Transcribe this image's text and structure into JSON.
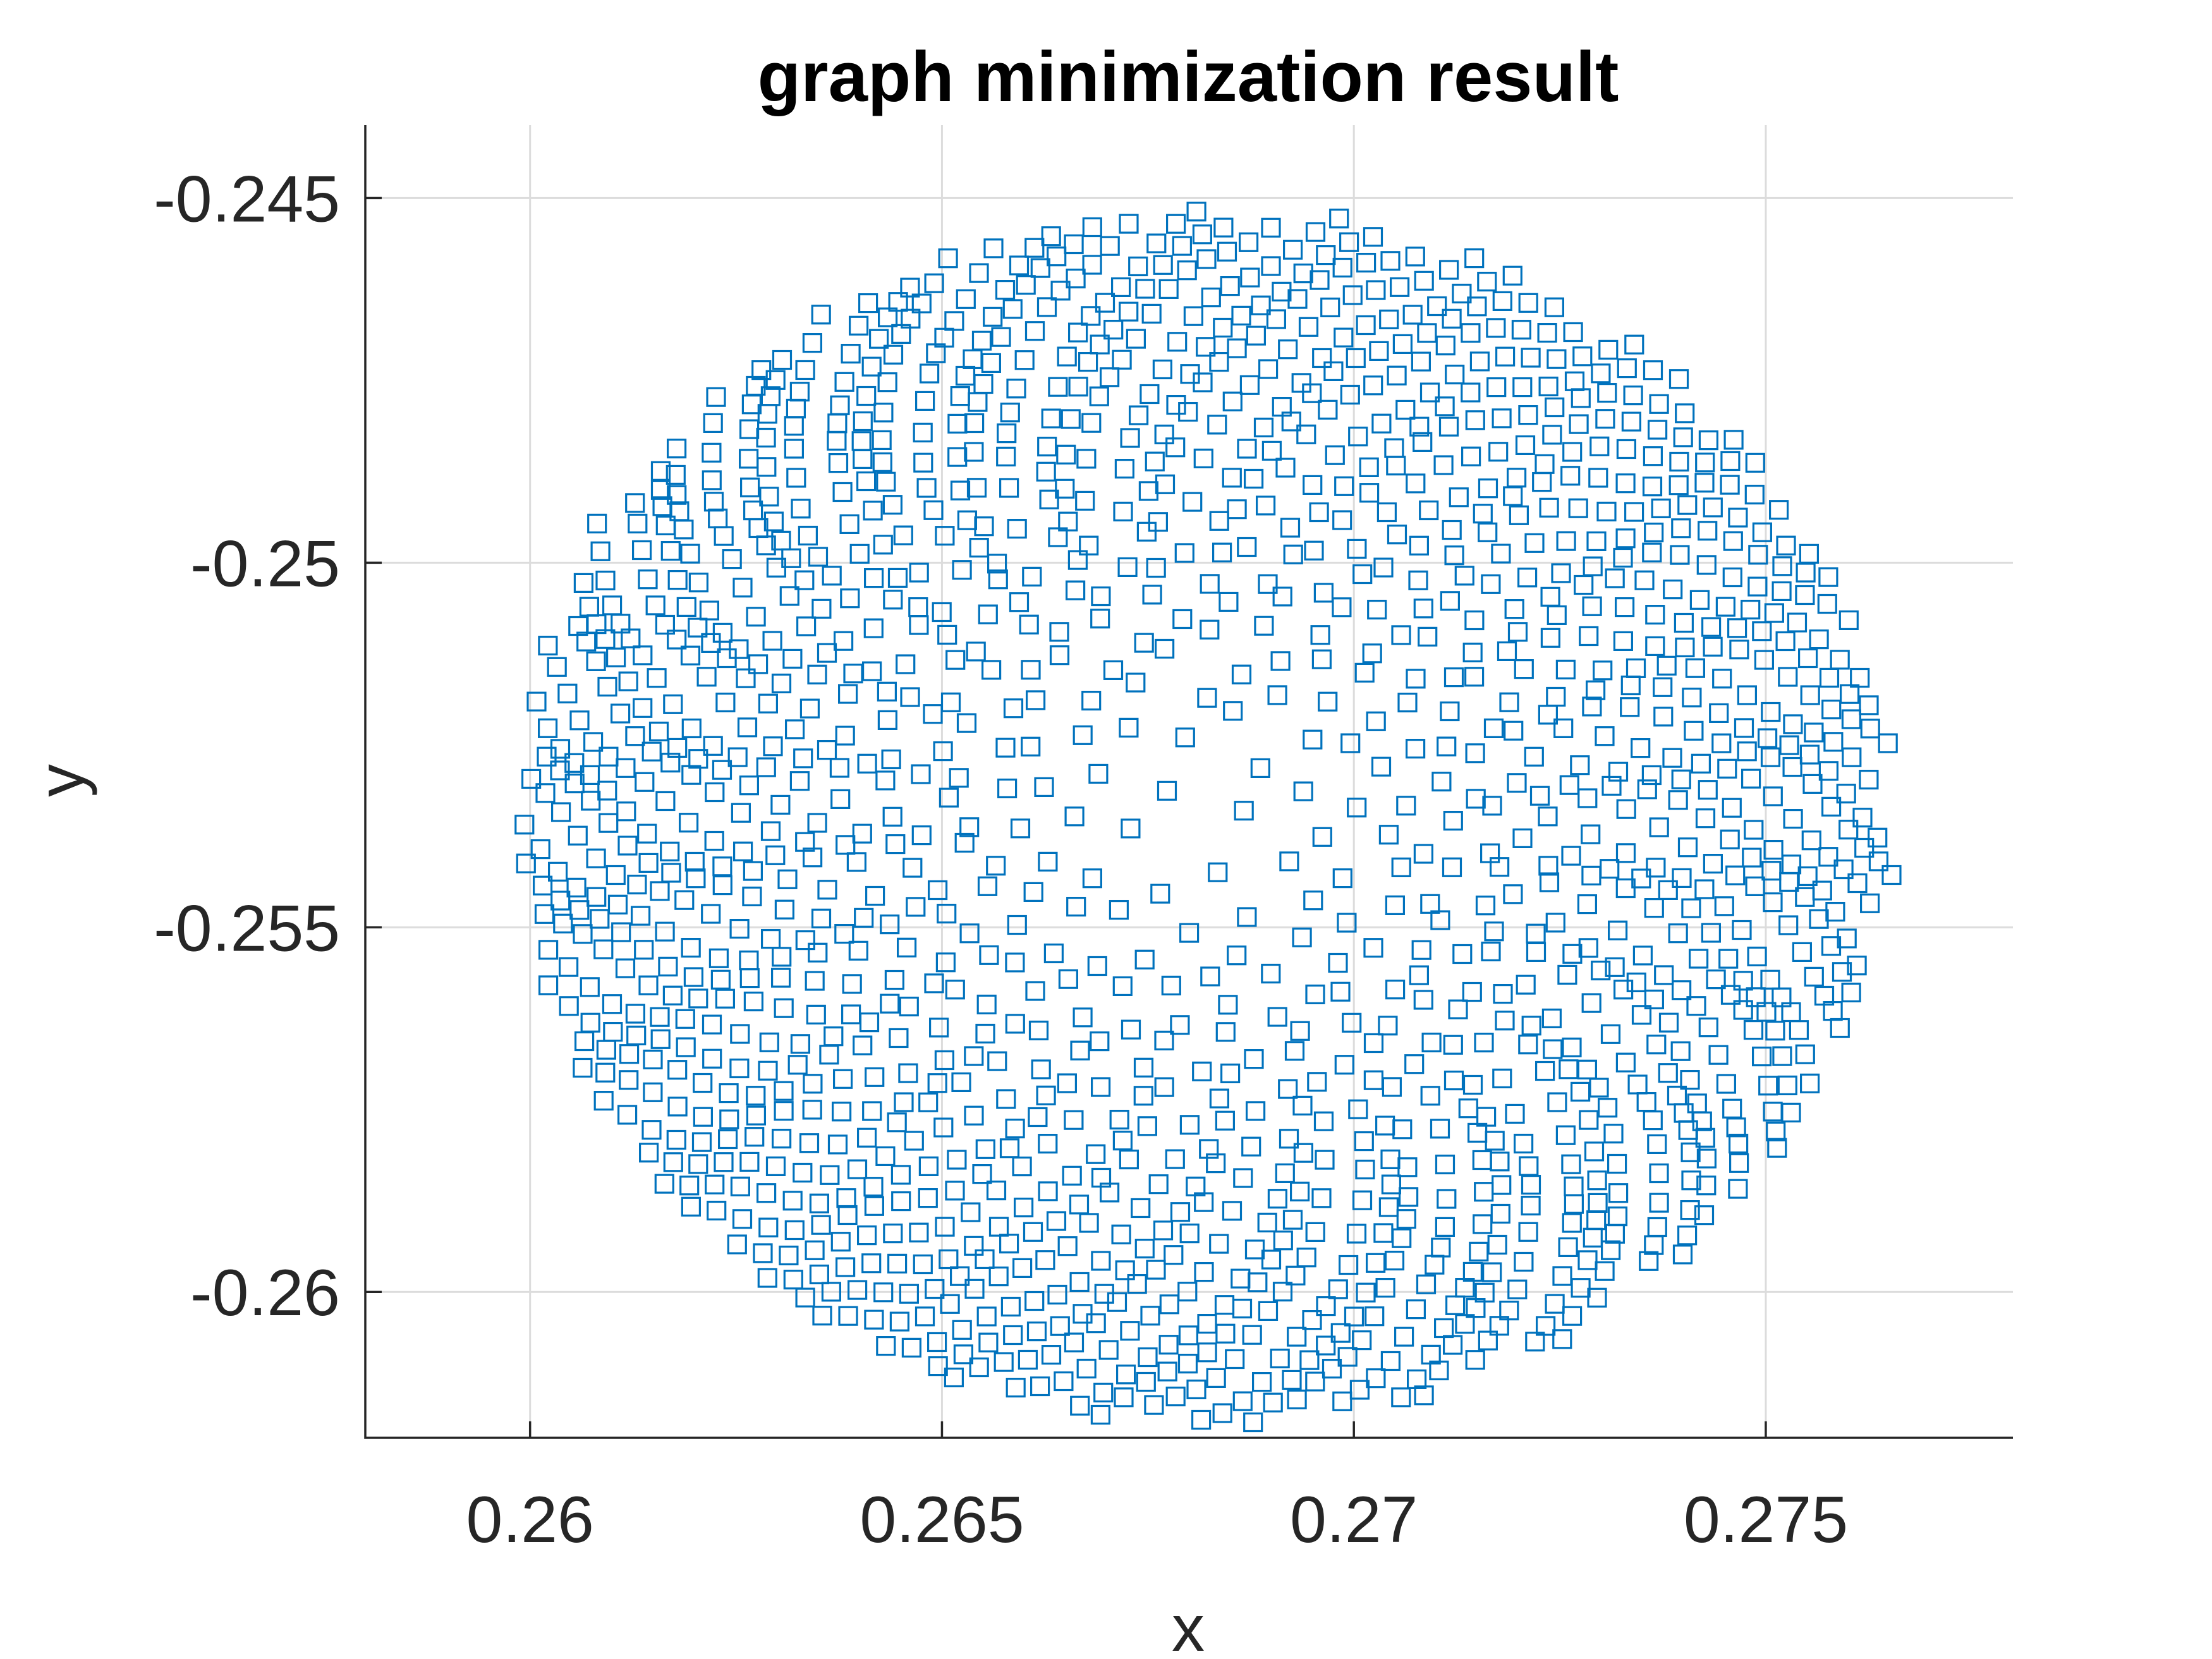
{
  "chart_data": {
    "type": "scatter",
    "title": "graph minimization result",
    "xlabel": "x",
    "ylabel": "y",
    "xlim": [
      0.258,
      0.278
    ],
    "ylim": [
      -0.262,
      -0.244
    ],
    "xticks": [
      0.26,
      0.265,
      0.27,
      0.275
    ],
    "xtick_labels": [
      "0.26",
      "0.265",
      "0.27",
      "0.275"
    ],
    "yticks": [
      -0.245,
      -0.25,
      -0.255,
      -0.26
    ],
    "ytick_labels": [
      "-0.245",
      "-0.25",
      "-0.255",
      "-0.26"
    ],
    "grid": true,
    "marker": "square",
    "marker_color": "#0072BD",
    "point_distribution": {
      "shape": "ellipse",
      "center": [
        0.2682,
        -0.2535
      ],
      "radius_x": 0.0083,
      "radius_y": 0.0083,
      "approx_count": 1500,
      "layout": "phyllotaxis, denser near boundary"
    }
  }
}
